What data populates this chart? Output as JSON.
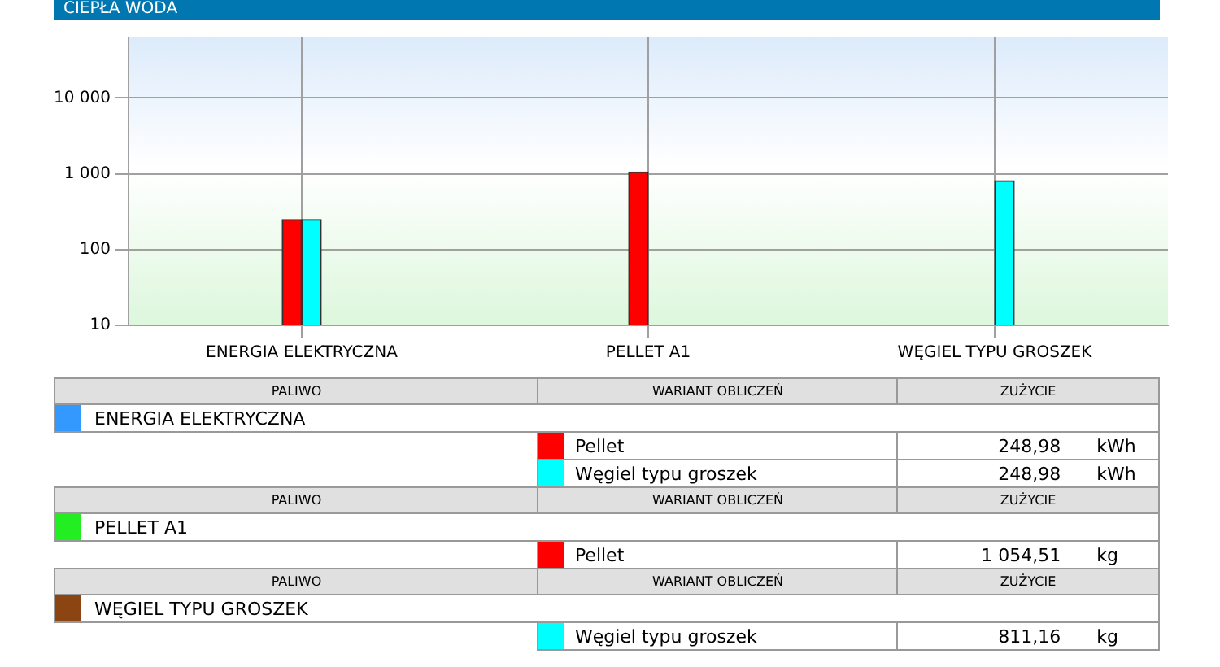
{
  "chart_data": {
    "type": "bar",
    "title": "CIEPŁA WODA",
    "categories": [
      "ENERGIA ELEKTRYCZNA",
      "PELLET A1",
      "WĘGIEL TYPU GROSZEK"
    ],
    "series": [
      {
        "name": "Pellet",
        "color": "#ff0000",
        "values": [
          248.98,
          1054.51,
          null
        ],
        "value_labels": [
          "248,98 kWh",
          "1 054,51 kg",
          null
        ]
      },
      {
        "name": "Węgiel typu groszek",
        "color": "#00ffff",
        "values": [
          248.98,
          null,
          811.16
        ],
        "value_labels": [
          "248,98 kWh",
          null,
          "811,16 kg"
        ]
      }
    ],
    "log": "y",
    "ylim": [
      10,
      63000
    ],
    "yticks": [
      {
        "value": 10,
        "label": "10"
      },
      {
        "value": 100,
        "label": "100"
      },
      {
        "value": 1000,
        "label": "1 000"
      },
      {
        "value": 10000,
        "label": "10 000"
      }
    ],
    "grid": true,
    "legend": "bottom",
    "annotations": [
      "PALIWO",
      "WARIANT OBLICZEŃ",
      "ZUŻYCIE"
    ]
  }
}
